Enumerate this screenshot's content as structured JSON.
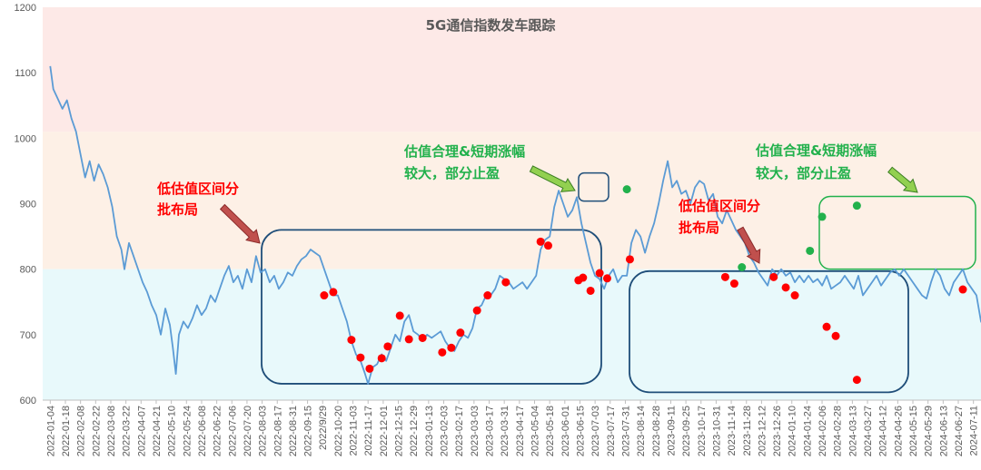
{
  "chart_data": {
    "type": "line",
    "title": "5G通信指数发车跟踪",
    "xlabel": "",
    "ylabel": "",
    "ylim": [
      600,
      1200
    ],
    "yticks": [
      600,
      700,
      800,
      900,
      1000,
      1100,
      1200
    ],
    "xticks": [
      "2022-01-04",
      "2022-01-18",
      "2022-02-08",
      "2022-02-22",
      "2022-03-08",
      "2022-03-22",
      "2022-04-07",
      "2022-04-21",
      "2022-05-10",
      "2022-05-24",
      "2022-06-08",
      "2022-06-22",
      "2022-07-06",
      "2022-07-20",
      "2022-08-03",
      "2022-08-17",
      "2022-08-31",
      "2022-09-15",
      "2022/9/29",
      "2022-10-20",
      "2022-11-03",
      "2022-11-17",
      "2022-12-01",
      "2022-12-15",
      "2022-12-29",
      "2023-01-13",
      "2023-02-03",
      "2023-02-17",
      "2023-03-03",
      "2023-03-17",
      "2023-03-31",
      "2023-04-17",
      "2023-05-04",
      "2023-05-18",
      "2023-06-01",
      "2023-06-15",
      "2023-07-03",
      "2023-07-17",
      "2023-07-31",
      "2023-08-14",
      "2023-08-28",
      "2023-09-11",
      "2023-09-25",
      "2023-10-17",
      "2023-10-31",
      "2023-11-14",
      "2023-11-28",
      "2023-12-12",
      "2023-12-26",
      "2024-01-10",
      "2024-01-24",
      "2024-02-06",
      "2024-02-28",
      "2024-03-13",
      "2024-03-27",
      "2024-04-12",
      "2024-04-26",
      "2024-05-15",
      "2024-05-29",
      "2024-06-13",
      "2024-06-27",
      "2024-07-11"
    ],
    "bands": [
      {
        "from": 1010,
        "to": 1200,
        "color": "#fde9e7"
      },
      {
        "from": 800,
        "to": 1010,
        "color": "#fdf0e6"
      },
      {
        "from": 600,
        "to": 800,
        "color": "#e8f9fb"
      }
    ],
    "series": [
      {
        "color": "#5b9bd5",
        "points": [
          [
            0,
            1110
          ],
          [
            0.2,
            1075
          ],
          [
            0.5,
            1060
          ],
          [
            0.8,
            1045
          ],
          [
            1.1,
            1058
          ],
          [
            1.4,
            1030
          ],
          [
            1.7,
            1010
          ],
          [
            2.0,
            975
          ],
          [
            2.3,
            940
          ],
          [
            2.6,
            965
          ],
          [
            2.9,
            935
          ],
          [
            3.2,
            960
          ],
          [
            3.5,
            945
          ],
          [
            3.8,
            925
          ],
          [
            4.1,
            895
          ],
          [
            4.4,
            850
          ],
          [
            4.7,
            830
          ],
          [
            4.9,
            800
          ],
          [
            5.2,
            840
          ],
          [
            5.5,
            820
          ],
          [
            5.8,
            800
          ],
          [
            6.1,
            780
          ],
          [
            6.4,
            765
          ],
          [
            6.7,
            745
          ],
          [
            7.0,
            730
          ],
          [
            7.3,
            700
          ],
          [
            7.6,
            740
          ],
          [
            7.9,
            715
          ],
          [
            8.1,
            680
          ],
          [
            8.3,
            640
          ],
          [
            8.5,
            700
          ],
          [
            8.8,
            720
          ],
          [
            9.1,
            710
          ],
          [
            9.4,
            725
          ],
          [
            9.7,
            745
          ],
          [
            10.0,
            730
          ],
          [
            10.3,
            740
          ],
          [
            10.6,
            760
          ],
          [
            10.9,
            750
          ],
          [
            11.2,
            770
          ],
          [
            11.5,
            790
          ],
          [
            11.8,
            805
          ],
          [
            12.1,
            780
          ],
          [
            12.4,
            790
          ],
          [
            12.7,
            770
          ],
          [
            13.0,
            800
          ],
          [
            13.3,
            780
          ],
          [
            13.6,
            820
          ],
          [
            13.9,
            795
          ],
          [
            14.2,
            800
          ],
          [
            14.5,
            780
          ],
          [
            14.8,
            790
          ],
          [
            15.1,
            770
          ],
          [
            15.4,
            780
          ],
          [
            15.7,
            795
          ],
          [
            16.0,
            790
          ],
          [
            16.3,
            805
          ],
          [
            16.6,
            815
          ],
          [
            16.9,
            820
          ],
          [
            17.2,
            830
          ],
          [
            17.5,
            825
          ],
          [
            17.8,
            820
          ],
          [
            18.1,
            800
          ],
          [
            18.4,
            780
          ],
          [
            18.7,
            760
          ],
          [
            19.0,
            760
          ],
          [
            19.3,
            740
          ],
          [
            19.6,
            720
          ],
          [
            19.9,
            690
          ],
          [
            20.2,
            670
          ],
          [
            20.5,
            660
          ],
          [
            20.8,
            640
          ],
          [
            21.0,
            625
          ],
          [
            21.3,
            650
          ],
          [
            21.6,
            655
          ],
          [
            21.9,
            670
          ],
          [
            22.2,
            660
          ],
          [
            22.5,
            680
          ],
          [
            22.8,
            700
          ],
          [
            23.1,
            690
          ],
          [
            23.4,
            720
          ],
          [
            23.7,
            730
          ],
          [
            24.0,
            705
          ],
          [
            24.3,
            700
          ],
          [
            24.6,
            690
          ],
          [
            24.9,
            700
          ],
          [
            25.2,
            695
          ],
          [
            25.5,
            700
          ],
          [
            25.8,
            705
          ],
          [
            26.1,
            690
          ],
          [
            26.4,
            680
          ],
          [
            26.7,
            675
          ],
          [
            27.0,
            690
          ],
          [
            27.3,
            700
          ],
          [
            27.6,
            695
          ],
          [
            27.9,
            710
          ],
          [
            28.2,
            740
          ],
          [
            28.5,
            745
          ],
          [
            28.8,
            760
          ],
          [
            29.1,
            760
          ],
          [
            29.4,
            770
          ],
          [
            29.7,
            790
          ],
          [
            30.0,
            785
          ],
          [
            30.3,
            780
          ],
          [
            30.6,
            770
          ],
          [
            30.9,
            775
          ],
          [
            31.2,
            780
          ],
          [
            31.5,
            770
          ],
          [
            31.8,
            780
          ],
          [
            32.1,
            790
          ],
          [
            32.4,
            830
          ],
          [
            32.7,
            845
          ],
          [
            33.0,
            850
          ],
          [
            33.3,
            895
          ],
          [
            33.6,
            920
          ],
          [
            33.9,
            900
          ],
          [
            34.2,
            880
          ],
          [
            34.5,
            890
          ],
          [
            34.8,
            910
          ],
          [
            35.1,
            870
          ],
          [
            35.4,
            840
          ],
          [
            35.7,
            810
          ],
          [
            36.0,
            790
          ],
          [
            36.3,
            785
          ],
          [
            36.6,
            770
          ],
          [
            36.9,
            790
          ],
          [
            37.2,
            800
          ],
          [
            37.5,
            780
          ],
          [
            37.8,
            790
          ],
          [
            38.1,
            790
          ],
          [
            38.4,
            840
          ],
          [
            38.7,
            860
          ],
          [
            39.0,
            850
          ],
          [
            39.3,
            825
          ],
          [
            39.6,
            850
          ],
          [
            39.9,
            870
          ],
          [
            40.2,
            900
          ],
          [
            40.5,
            935
          ],
          [
            40.8,
            965
          ],
          [
            41.1,
            925
          ],
          [
            41.4,
            935
          ],
          [
            41.7,
            915
          ],
          [
            42.0,
            920
          ],
          [
            42.3,
            900
          ],
          [
            42.6,
            925
          ],
          [
            42.9,
            935
          ],
          [
            43.2,
            930
          ],
          [
            43.5,
            905
          ],
          [
            43.8,
            915
          ],
          [
            44.1,
            880
          ],
          [
            44.4,
            870
          ],
          [
            44.7,
            890
          ],
          [
            45.0,
            875
          ],
          [
            45.3,
            860
          ],
          [
            45.6,
            850
          ],
          [
            45.9,
            840
          ],
          [
            46.2,
            820
          ],
          [
            46.5,
            810
          ],
          [
            46.8,
            795
          ],
          [
            47.1,
            785
          ],
          [
            47.4,
            775
          ],
          [
            47.7,
            800
          ],
          [
            48.0,
            790
          ],
          [
            48.3,
            800
          ],
          [
            48.6,
            790
          ],
          [
            48.9,
            795
          ],
          [
            49.2,
            780
          ],
          [
            49.5,
            790
          ],
          [
            49.8,
            780
          ],
          [
            50.1,
            790
          ],
          [
            50.4,
            780
          ],
          [
            50.7,
            785
          ],
          [
            51.0,
            775
          ],
          [
            51.3,
            790
          ],
          [
            51.6,
            770
          ],
          [
            51.9,
            775
          ],
          [
            52.2,
            780
          ],
          [
            52.5,
            790
          ],
          [
            52.8,
            780
          ],
          [
            53.1,
            770
          ],
          [
            53.4,
            790
          ],
          [
            53.7,
            760
          ],
          [
            54.0,
            770
          ],
          [
            54.3,
            780
          ],
          [
            54.6,
            790
          ],
          [
            54.9,
            775
          ],
          [
            55.2,
            785
          ],
          [
            55.5,
            795
          ],
          [
            55.8,
            800
          ],
          [
            56.1,
            790
          ],
          [
            56.4,
            800
          ],
          [
            56.7,
            790
          ],
          [
            57.0,
            780
          ],
          [
            57.3,
            770
          ],
          [
            57.6,
            760
          ],
          [
            57.9,
            755
          ],
          [
            58.2,
            780
          ],
          [
            58.5,
            800
          ],
          [
            58.8,
            790
          ],
          [
            59.1,
            770
          ],
          [
            59.4,
            760
          ],
          [
            59.7,
            780
          ],
          [
            60.0,
            790
          ],
          [
            60.3,
            800
          ],
          [
            60.6,
            780
          ],
          [
            60.9,
            770
          ],
          [
            61.2,
            760
          ],
          [
            61.5,
            720
          ],
          [
            61.8,
            710
          ],
          [
            62.1,
            700
          ],
          [
            62.4,
            690
          ],
          [
            62.7,
            680
          ],
          [
            63.0,
            660
          ],
          [
            63.3,
            640
          ],
          [
            63.6,
            620
          ],
          [
            63.9,
            610
          ],
          [
            64.2,
            660
          ],
          [
            64.5,
            690
          ],
          [
            64.8,
            700
          ],
          [
            65.1,
            720
          ],
          [
            65.4,
            750
          ],
          [
            65.7,
            790
          ],
          [
            66.0,
            800
          ],
          [
            66.3,
            810
          ],
          [
            66.6,
            830
          ],
          [
            66.9,
            820
          ],
          [
            67.2,
            845
          ],
          [
            67.5,
            835
          ],
          [
            67.8,
            820
          ],
          [
            68.1,
            800
          ],
          [
            68.4,
            790
          ],
          [
            68.7,
            800
          ],
          [
            69.0,
            780
          ],
          [
            69.3,
            760
          ],
          [
            69.6,
            770
          ],
          [
            69.9,
            750
          ],
          [
            70.2,
            770
          ],
          [
            70.5,
            760
          ],
          [
            70.8,
            790
          ],
          [
            71.1,
            800
          ],
          [
            71.4,
            810
          ],
          [
            71.7,
            800
          ],
          [
            72.0,
            790
          ],
          [
            72.3,
            810
          ],
          [
            72.6,
            820
          ],
          [
            72.9,
            840
          ],
          [
            73.2,
            870
          ],
          [
            73.5,
            890
          ],
          [
            73.8,
            880
          ],
          [
            74.1,
            860
          ],
          [
            74.4,
            855
          ],
          [
            74.7,
            850
          ],
          [
            75.0,
            880
          ],
          [
            75.3,
            895
          ],
          [
            75.6,
            905
          ]
        ]
      }
    ],
    "markers_red": [
      [
        18.1,
        760
      ],
      [
        18.7,
        765
      ],
      [
        19.9,
        692
      ],
      [
        20.5,
        665
      ],
      [
        21.1,
        648
      ],
      [
        21.9,
        664
      ],
      [
        22.3,
        682
      ],
      [
        23.1,
        729
      ],
      [
        23.7,
        693
      ],
      [
        24.6,
        695
      ],
      [
        25.9,
        673
      ],
      [
        26.5,
        680
      ],
      [
        27.1,
        703
      ],
      [
        28.2,
        737
      ],
      [
        28.9,
        760
      ],
      [
        30.1,
        780
      ],
      [
        32.4,
        842
      ],
      [
        32.9,
        836
      ],
      [
        34.9,
        783
      ],
      [
        35.2,
        787
      ],
      [
        35.7,
        767
      ],
      [
        36.3,
        794
      ],
      [
        36.8,
        786
      ],
      [
        38.3,
        815
      ],
      [
        44.6,
        788
      ],
      [
        45.2,
        778
      ],
      [
        47.8,
        788
      ],
      [
        48.6,
        772
      ],
      [
        49.2,
        760
      ],
      [
        51.3,
        712
      ],
      [
        51.9,
        698
      ],
      [
        53.3,
        631
      ],
      [
        60.3,
        769
      ]
    ],
    "markers_green": [
      [
        38.1,
        922
      ],
      [
        45.7,
        803
      ],
      [
        50.2,
        828
      ],
      [
        51.0,
        880
      ],
      [
        53.3,
        897
      ]
    ],
    "annotations": [
      {
        "color": "red",
        "lines": [
          "低估值区间分",
          "批布局"
        ]
      },
      {
        "color": "green",
        "lines": [
          "估值合理&短期涨幅",
          "较大，部分止盈"
        ]
      },
      {
        "color": "red",
        "lines": [
          "低估值区间分",
          "批布局"
        ]
      },
      {
        "color": "green",
        "lines": [
          "估值合理&短期涨幅",
          "较大，部分止盈"
        ]
      }
    ]
  }
}
